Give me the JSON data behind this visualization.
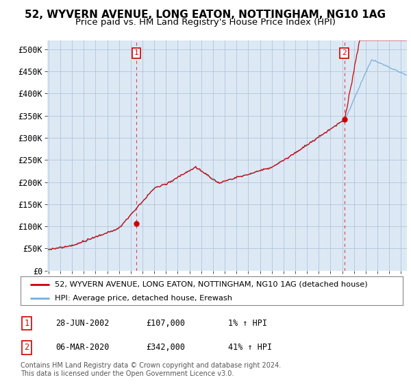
{
  "title": "52, WYVERN AVENUE, LONG EATON, NOTTINGHAM, NG10 1AG",
  "subtitle": "Price paid vs. HM Land Registry's House Price Index (HPI)",
  "ylabel_ticks": [
    "£0",
    "£50K",
    "£100K",
    "£150K",
    "£200K",
    "£250K",
    "£300K",
    "£350K",
    "£400K",
    "£450K",
    "£500K"
  ],
  "ytick_values": [
    0,
    50000,
    100000,
    150000,
    200000,
    250000,
    300000,
    350000,
    400000,
    450000,
    500000
  ],
  "ylim": [
    0,
    520000
  ],
  "xlim_start": 1994.9,
  "xlim_end": 2025.5,
  "bg_color": "#ffffff",
  "plot_bg_color": "#dce9f5",
  "grid_color": "#b0c4d8",
  "hpi_color": "#7aaddb",
  "price_color": "#cc0000",
  "marker1_label": "1",
  "marker1_year": 2002.49,
  "marker1_value": 107000,
  "marker2_label": "2",
  "marker2_year": 2020.17,
  "marker2_value": 342000,
  "legend_line1": "52, WYVERN AVENUE, LONG EATON, NOTTINGHAM, NG10 1AG (detached house)",
  "legend_line2": "HPI: Average price, detached house, Erewash",
  "table_rows": [
    [
      "1",
      "28-JUN-2002",
      "£107,000",
      "1% ↑ HPI"
    ],
    [
      "2",
      "06-MAR-2020",
      "£342,000",
      "41% ↑ HPI"
    ]
  ],
  "footnote": "Contains HM Land Registry data © Crown copyright and database right 2024.\nThis data is licensed under the Open Government Licence v3.0.",
  "title_fontsize": 11,
  "subtitle_fontsize": 9.5,
  "tick_fontsize": 8.5,
  "legend_fontsize": 9
}
